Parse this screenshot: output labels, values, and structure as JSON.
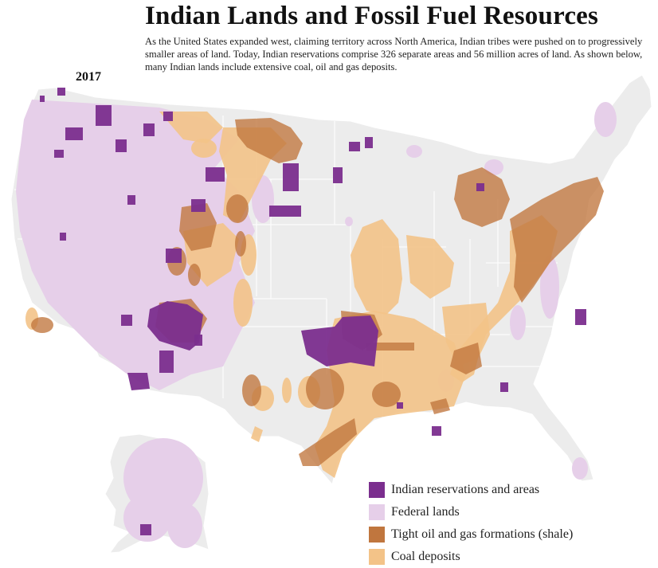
{
  "title": "Indian Lands and Fossil Fuel Resources",
  "description": "As the United States expanded west, claiming territory across North America, Indian tribes were pushed on to progressively smaller areas of land. Today, Indian reservations comprise 326 separate areas and 56 million acres of land. As shown below, many Indian lands include extensive coal, oil and gas deposits.",
  "year": "2017",
  "colors": {
    "land": "#ececec",
    "border": "#ffffff",
    "reservation": "#7b2e8e",
    "federal": "#e6cfe9",
    "shale": "#c0763e",
    "coal": "#f3c388"
  },
  "legend": [
    {
      "label": "Indian reservations and areas",
      "color": "#7b2e8e"
    },
    {
      "label": "Federal lands",
      "color": "#e6cfe9"
    },
    {
      "label": "Tight oil and gas formations (shale)",
      "color": "#c0763e"
    },
    {
      "label": "Coal deposits",
      "color": "#f3c388"
    }
  ]
}
